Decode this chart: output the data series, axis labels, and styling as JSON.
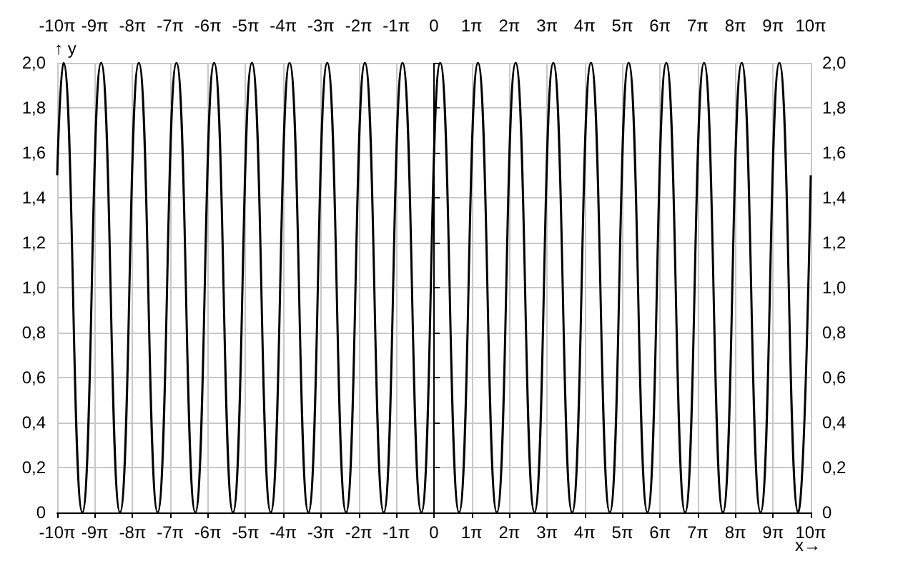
{
  "chart_data": {
    "type": "line",
    "xlabel": "x→",
    "ylabel": "↑ y",
    "x": [
      -31.4159,
      -30.89,
      -29.32,
      -27.75,
      -26.18,
      -24.61,
      -23.04,
      -21.47,
      -19.9,
      -18.33,
      -16.76,
      -15.18,
      -13.61,
      -12.04,
      -10.47,
      -8.9,
      -7.33,
      -5.76,
      -4.19,
      -2.62,
      -1.05,
      0.52,
      2.09,
      3.67,
      5.24,
      6.81,
      8.38,
      9.95,
      11.52,
      13.09,
      14.66,
      16.23,
      17.8,
      19.37,
      20.94,
      22.52,
      24.09,
      25.66,
      27.23,
      28.8,
      30.37,
      31.4159
    ],
    "series": [
      {
        "color": "#000000",
        "values": [
          1.5,
          2,
          0,
          2,
          0,
          2,
          0,
          2,
          0,
          2,
          0,
          2,
          0,
          2,
          0,
          2,
          0,
          2,
          0,
          2,
          0,
          2,
          0,
          2,
          0,
          2,
          0,
          2,
          0,
          2,
          0,
          2,
          0,
          2,
          0,
          2,
          0,
          2,
          0,
          2,
          0,
          1.5
        ]
      }
    ],
    "xlim": [
      -31.4159,
      31.4159
    ],
    "xticks": [
      {
        "value": -31.4159,
        "label": "-10π"
      },
      {
        "value": -28.2743,
        "label": "-9π"
      },
      {
        "value": -25.1327,
        "label": "-8π"
      },
      {
        "value": -21.9911,
        "label": "-7π"
      },
      {
        "value": -18.8496,
        "label": "-6π"
      },
      {
        "value": -15.708,
        "label": "-5π"
      },
      {
        "value": -12.5664,
        "label": "-4π"
      },
      {
        "value": -9.4248,
        "label": "-3π"
      },
      {
        "value": -6.2832,
        "label": "-2π"
      },
      {
        "value": -3.1416,
        "label": "-1π"
      },
      0,
      {
        "value": 3.1416,
        "label": "1π"
      },
      {
        "value": 6.2832,
        "label": "2π"
      },
      {
        "value": 9.4248,
        "label": "3π"
      },
      {
        "value": 12.5664,
        "label": "4π"
      },
      {
        "value": 15.708,
        "label": "5π"
      },
      {
        "value": 18.8496,
        "label": "6π"
      },
      {
        "value": 21.9911,
        "label": "7π"
      },
      {
        "value": 25.1327,
        "label": "8π"
      },
      {
        "value": 28.2743,
        "label": "9π"
      },
      {
        "value": 31.4159,
        "label": "10π"
      }
    ],
    "x2lim": [
      -31.4159,
      31.4159
    ],
    "x2ticks": [
      {
        "value": -31.4159,
        "label": "-10π"
      },
      {
        "value": -28.2743,
        "label": "-9π"
      },
      {
        "value": -25.1327,
        "label": "-8π"
      },
      {
        "value": -21.9911,
        "label": "-7π"
      },
      {
        "value": -18.8496,
        "label": "-6π"
      },
      {
        "value": -15.708,
        "label": "-5π"
      },
      {
        "value": -12.5664,
        "label": "-4π"
      },
      {
        "value": -9.4248,
        "label": "-3π"
      },
      {
        "value": -6.2832,
        "label": "-2π"
      },
      {
        "value": -3.1416,
        "label": "-1π"
      },
      0,
      {
        "value": 3.1416,
        "label": "1π"
      },
      {
        "value": 6.2832,
        "label": "2π"
      },
      {
        "value": 9.4248,
        "label": "3π"
      },
      {
        "value": 12.5664,
        "label": "4π"
      },
      {
        "value": 15.708,
        "label": "5π"
      },
      {
        "value": 18.8496,
        "label": "6π"
      },
      {
        "value": 21.9911,
        "label": "7π"
      },
      {
        "value": 25.1327,
        "label": "8π"
      },
      {
        "value": 28.2743,
        "label": "9π"
      },
      {
        "value": 31.4159,
        "label": "10π"
      }
    ],
    "ylim": [
      0,
      2
    ],
    "yticks": [
      0,
      {
        "value": 0.2,
        "label": "0,2"
      },
      {
        "value": 0.4,
        "label": "0,4"
      },
      {
        "value": 0.6,
        "label": "0,6"
      },
      {
        "value": 0.8,
        "label": "0,8"
      },
      {
        "value": 1,
        "label": "1,0"
      },
      {
        "value": 1.2,
        "label": "1,2"
      },
      {
        "value": 1.4,
        "label": "1,4"
      },
      {
        "value": 1.6,
        "label": "1,6"
      },
      {
        "value": 1.8,
        "label": "1,8"
      },
      {
        "value": 2,
        "label": "2,0"
      }
    ],
    "y2lim": [
      0,
      2
    ],
    "y2ticks": [
      0,
      {
        "value": 0.2,
        "label": "0,2"
      },
      {
        "value": 0.4,
        "label": "0,4"
      },
      {
        "value": 0.6,
        "label": "0,6"
      },
      {
        "value": 0.8,
        "label": "0,8"
      },
      {
        "value": 1,
        "label": "1,0"
      },
      {
        "value": 1.2,
        "label": "1,2"
      },
      {
        "value": 1.4,
        "label": "1,4"
      },
      {
        "value": 1.6,
        "label": "1,6"
      },
      {
        "value": 1.8,
        "label": "1,8"
      },
      {
        "value": 2,
        "label": "2,0"
      }
    ],
    "grid": true,
    "marker": "none",
    "line_style": "solid"
  }
}
